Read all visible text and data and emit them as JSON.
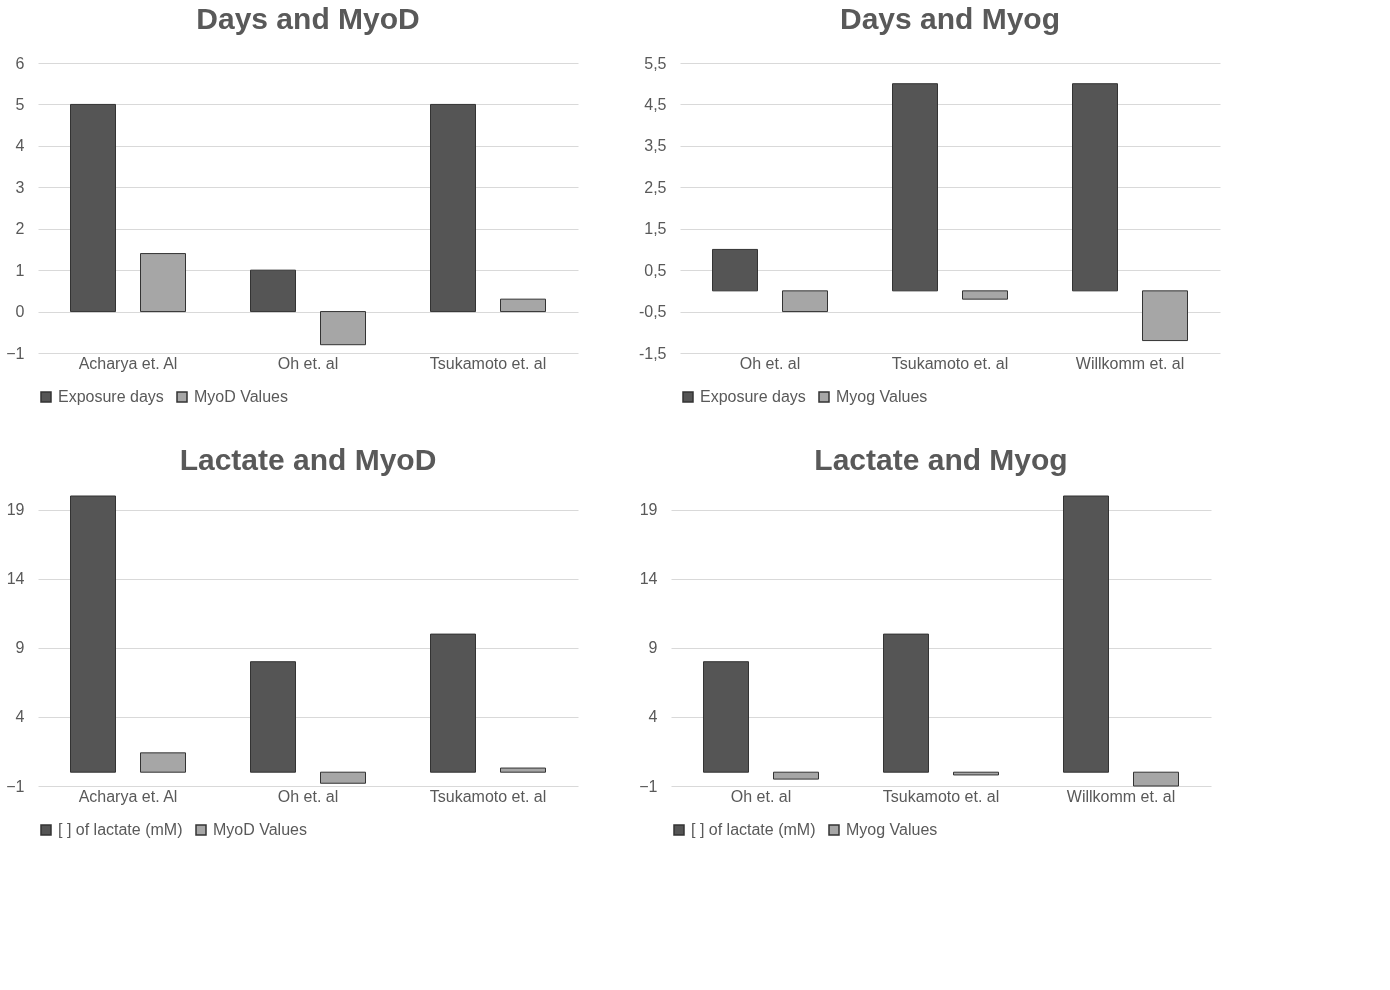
{
  "chart_data": [
    {
      "type": "bar",
      "title": "Days and MyoD",
      "categories": [
        "Acharya et. Al",
        "Oh et. al",
        "Tsukamoto et. al"
      ],
      "series": [
        {
          "name": "Exposure days",
          "color": "#555555",
          "values": [
            5,
            1,
            5
          ]
        },
        {
          "name": "MyoD Values",
          "color": "#a6a6a6",
          "values": [
            1.4,
            -0.8,
            0.3
          ]
        }
      ],
      "ylim": [
        -1,
        6
      ],
      "yticks": [
        -1,
        0,
        1,
        2,
        3,
        4,
        5,
        6
      ],
      "grid": "y",
      "legend": "bottom"
    },
    {
      "type": "bar",
      "title": "Days and Myog",
      "categories": [
        "Oh et. al",
        "Tsukamoto et. al",
        "Willkomm et. al"
      ],
      "series": [
        {
          "name": "Exposure days",
          "color": "#555555",
          "values": [
            1,
            5,
            5
          ]
        },
        {
          "name": "Myog Values",
          "color": "#a6a6a6",
          "values": [
            -0.5,
            -0.2,
            -1.2
          ]
        }
      ],
      "ylim": [
        -1.5,
        5.5
      ],
      "yticks": [
        {
          "value": -1.5,
          "label": "-1,5"
        },
        {
          "value": -0.5,
          "label": "-0,5"
        },
        {
          "value": 0.5,
          "label": "0,5"
        },
        {
          "value": 1.5,
          "label": "1,5"
        },
        {
          "value": 2.5,
          "label": "2,5"
        },
        {
          "value": 3.5,
          "label": "3,5"
        },
        {
          "value": 4.5,
          "label": "4,5"
        },
        {
          "value": 5.5,
          "label": "5,5"
        }
      ],
      "grid": "y",
      "legend": "bottom"
    },
    {
      "type": "bar",
      "title": "Lactate and MyoD",
      "categories": [
        "Acharya et. Al",
        "Oh et. al",
        "Tsukamoto et. al"
      ],
      "series": [
        {
          "name": "[ ] of lactate (mM)",
          "color": "#555555",
          "values": [
            20,
            8,
            10
          ]
        },
        {
          "name": "MyoD Values",
          "color": "#a6a6a6",
          "values": [
            1.4,
            -0.8,
            0.3
          ]
        }
      ],
      "ylim": [
        -1,
        20
      ],
      "yticks": [
        -1,
        4,
        9,
        14,
        19
      ],
      "grid": "y",
      "legend": "bottom"
    },
    {
      "type": "bar",
      "title": "Lactate and Myog",
      "categories": [
        "Oh et. al",
        "Tsukamoto et. al",
        "Willkomm et. al"
      ],
      "series": [
        {
          "name": "[ ] of lactate (mM)",
          "color": "#555555",
          "values": [
            8,
            10,
            20
          ]
        },
        {
          "name": "Myog Values",
          "color": "#a6a6a6",
          "values": [
            -0.5,
            -0.2,
            -1.0
          ]
        }
      ],
      "ylim": [
        -1,
        20
      ],
      "yticks": [
        -1,
        4,
        9,
        14,
        19
      ],
      "grid": "y",
      "legend": "bottom"
    }
  ]
}
